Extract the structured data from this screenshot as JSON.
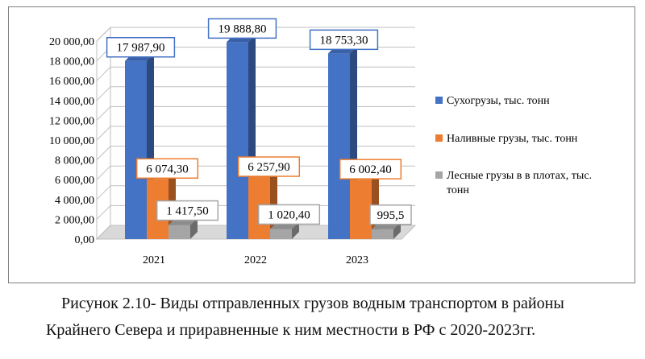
{
  "chart_data": {
    "type": "bar",
    "categories": [
      "2021",
      "2022",
      "2023"
    ],
    "series": [
      {
        "name": "Сухогрузы, тыс. тонн",
        "values": [
          17987.9,
          19888.8,
          18753.3
        ],
        "labels": [
          "17 987,90",
          "19 888,80",
          "18 753,30"
        ],
        "color": "#4472c4"
      },
      {
        "name": "Наливные грузы, тыс. тонн",
        "values": [
          6074.3,
          6257.9,
          6002.4
        ],
        "labels": [
          "6 074,30",
          "6 257,90",
          "6 002,40"
        ],
        "color": "#ed7d31"
      },
      {
        "name": "Лесные грузы в в плотах, тыс. тонн",
        "values": [
          1417.5,
          1020.4,
          995.5
        ],
        "labels": [
          "1 417,50",
          "1 020,40",
          "995,5"
        ],
        "color": "#a5a5a5"
      }
    ],
    "ylim": [
      0,
      20000
    ],
    "yticks": [
      "0,00",
      "2 000,00",
      "4 000,00",
      "6 000,00",
      "8 000,00",
      "10 000,00",
      "12 000,00",
      "14 000,00",
      "16 000,00",
      "18 000,00",
      "20 000,00"
    ],
    "grid": true,
    "legend": "right",
    "three_d": true
  },
  "caption": {
    "line1": "Рисунок 2.10- Виды отправленных грузов водным транспортом в районы",
    "line2": "Крайнего Севера и приравненные к ним местности в РФ с 2020-2023гг."
  }
}
